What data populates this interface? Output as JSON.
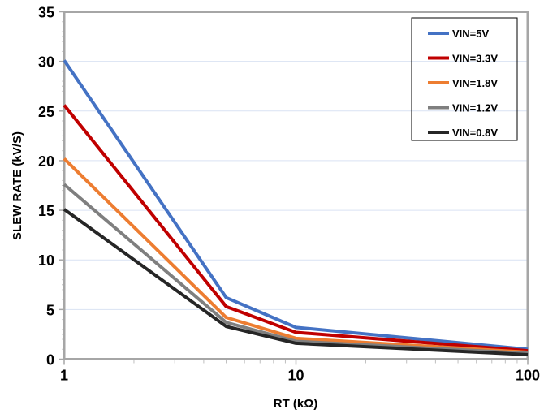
{
  "chart_data": {
    "type": "line",
    "xlabel": "RT (kΩ)",
    "ylabel": "SLEW RATE (kV/S)",
    "xscale": "log",
    "xlim": [
      1,
      100
    ],
    "ylim": [
      0,
      35
    ],
    "xticks": [
      "1",
      "10",
      "100"
    ],
    "yticks": [
      "0",
      "5",
      "10",
      "15",
      "20",
      "25",
      "30",
      "35"
    ],
    "grid": true,
    "legend_position": "top-right",
    "x": [
      1,
      5,
      10,
      100
    ],
    "series": [
      {
        "name": "VIN=5V",
        "color": "#4472C4",
        "values": [
          30.1,
          6.2,
          3.2,
          1.0
        ]
      },
      {
        "name": "VIN=3.3V",
        "color": "#C00000",
        "values": [
          25.6,
          5.3,
          2.7,
          0.85
        ]
      },
      {
        "name": "VIN=1.8V",
        "color": "#ED7D31",
        "values": [
          20.2,
          4.2,
          2.1,
          0.7
        ]
      },
      {
        "name": "VIN=1.2V",
        "color": "#7F7F7F",
        "values": [
          17.6,
          3.7,
          1.8,
          0.6
        ]
      },
      {
        "name": "VIN=0.8V",
        "color": "#262626",
        "values": [
          15.1,
          3.3,
          1.6,
          0.45
        ]
      }
    ]
  }
}
